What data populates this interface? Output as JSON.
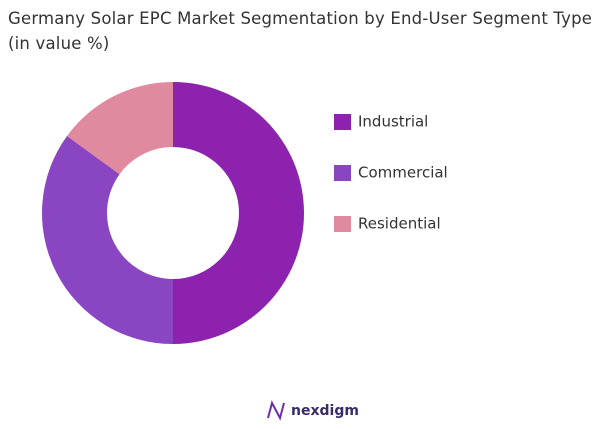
{
  "chart_data": {
    "type": "donut",
    "title": "Germany Solar EPC Market Segmentation by End-User Segment Type (in value %)",
    "categories": [
      "Industrial",
      "Commercial",
      "Residential"
    ],
    "values": [
      50,
      35,
      15
    ],
    "colors": [
      "#8c22ad",
      "#8a45c2",
      "#e08aa0"
    ],
    "legend": "right"
  },
  "brand": "nexdigm"
}
